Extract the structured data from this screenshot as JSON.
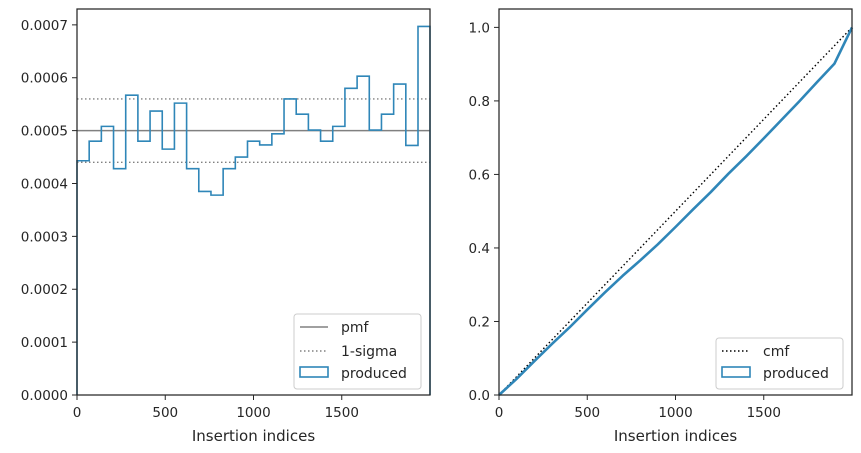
{
  "colors": {
    "produced": "#2f86b8",
    "pmf": "#808080",
    "sigma": "#808080",
    "cmf": "#000000",
    "axes": "#262626",
    "legend_border": "#cccccc"
  },
  "chart_data": [
    {
      "type": "histogram",
      "xlabel": "Insertion indices",
      "ylabel": "",
      "xlim": [
        0,
        2000
      ],
      "ylim": [
        0,
        0.00073
      ],
      "x_ticks": [
        0,
        500,
        1000,
        1500
      ],
      "x_tick_labels": [
        "0",
        "500",
        "1000",
        "1500"
      ],
      "y_ticks": [
        0,
        0.0001,
        0.0002,
        0.0003,
        0.0004,
        0.0005,
        0.0006,
        0.0007
      ],
      "y_tick_labels": [
        "0.0000",
        "0.0001",
        "0.0002",
        "0.0003",
        "0.0004",
        "0.0005",
        "0.0006",
        "0.0007"
      ],
      "grid": false,
      "legend_position": "lower right",
      "legend": [
        "pmf",
        "1-sigma",
        "produced"
      ],
      "bin_edges": [
        0,
        69,
        138,
        207,
        276,
        345,
        414,
        483,
        552,
        621,
        690,
        759,
        828,
        897,
        966,
        1035,
        1104,
        1173,
        1242,
        1311,
        1380,
        1449,
        1518,
        1587,
        1656,
        1725,
        1794,
        1863,
        1932,
        2000
      ],
      "series": [
        {
          "name": "produced",
          "style": "step",
          "values": [
            0.000443,
            0.00048,
            0.000508,
            0.000428,
            0.000567,
            0.00048,
            0.000537,
            0.000465,
            0.000552,
            0.000428,
            0.000385,
            0.000378,
            0.000428,
            0.00045,
            0.00048,
            0.000473,
            0.000494,
            0.00056,
            0.000531,
            0.000501,
            0.00048,
            0.000508,
            0.00058,
            0.000603,
            0.000501,
            0.000531,
            0.000588,
            0.000472,
            0.000697
          ]
        },
        {
          "name": "pmf",
          "style": "solid",
          "y": 0.0005
        },
        {
          "name": "1-sigma",
          "style": "dotted",
          "y": [
            0.00044,
            0.00056
          ]
        }
      ]
    },
    {
      "type": "line",
      "xlabel": "Insertion indices",
      "ylabel": "",
      "xlim": [
        0,
        2000
      ],
      "ylim": [
        0,
        1.05
      ],
      "x_ticks": [
        0,
        500,
        1000,
        1500
      ],
      "x_tick_labels": [
        "0",
        "500",
        "1000",
        "1500"
      ],
      "y_ticks": [
        0,
        0.2,
        0.4,
        0.6,
        0.8,
        1.0
      ],
      "y_tick_labels": [
        "0.0",
        "0.2",
        "0.4",
        "0.6",
        "0.8",
        "1.0"
      ],
      "grid": false,
      "legend_position": "lower right",
      "legend": [
        "cmf",
        "produced"
      ],
      "series": [
        {
          "name": "cmf",
          "style": "dotted",
          "x": [
            0,
            2000
          ],
          "y": [
            0,
            1.0
          ]
        },
        {
          "name": "produced",
          "style": "step",
          "x": [
            0,
            100,
            200,
            300,
            400,
            500,
            600,
            700,
            800,
            900,
            1000,
            1100,
            1200,
            1300,
            1400,
            1500,
            1600,
            1700,
            1800,
            1900,
            2000
          ],
          "y": [
            0,
            0.044,
            0.092,
            0.139,
            0.184,
            0.232,
            0.279,
            0.324,
            0.366,
            0.41,
            0.457,
            0.505,
            0.552,
            0.602,
            0.649,
            0.698,
            0.748,
            0.798,
            0.85,
            0.901,
            1.0
          ]
        }
      ]
    }
  ]
}
